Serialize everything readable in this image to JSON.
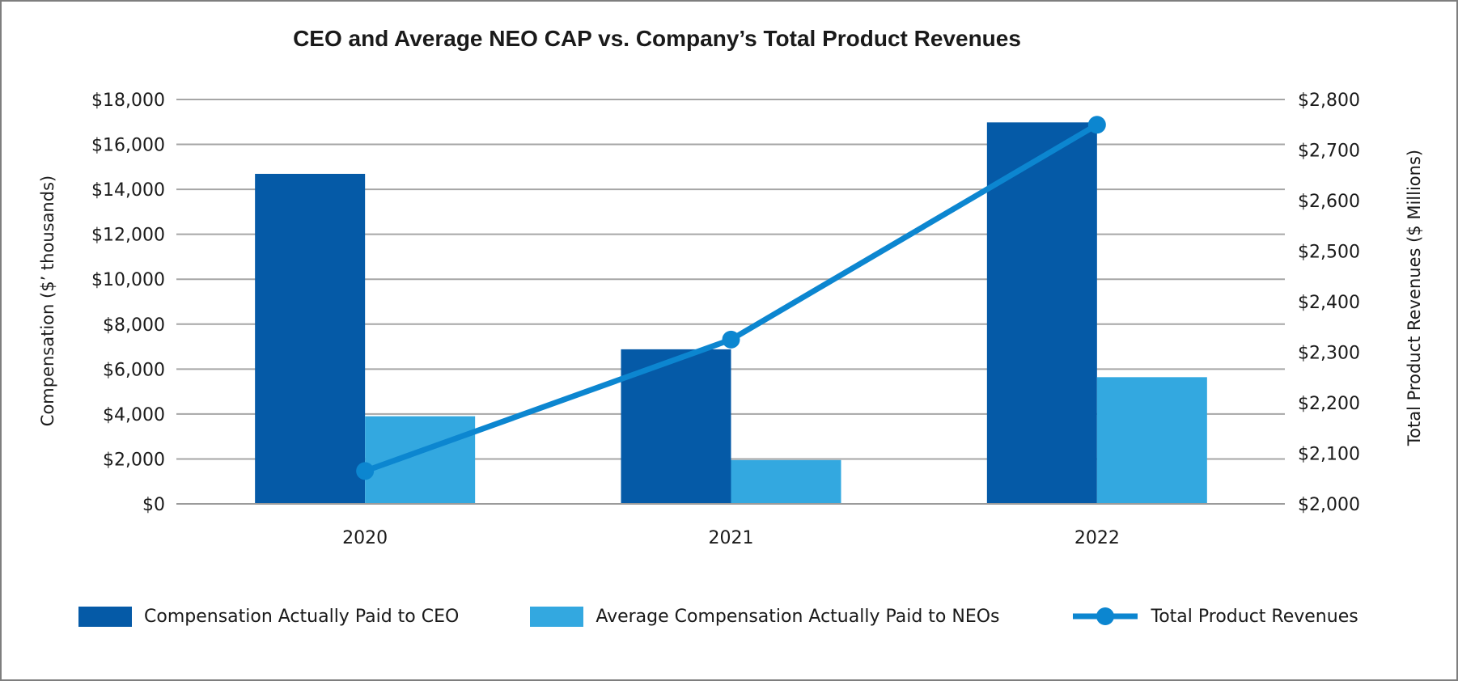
{
  "chart": {
    "title": "CEO and Average NEO CAP vs. Company’s Total Product Revenues"
  },
  "chart_data": {
    "type": "bar",
    "subtype": "bar-line-combo",
    "title": "CEO and Average NEO CAP vs. Company’s Total Product Revenues",
    "categories": [
      "2020",
      "2021",
      "2022"
    ],
    "series": [
      {
        "name": "Compensation Actually Paid to CEO",
        "type": "bar",
        "axis": "left",
        "color": "#055aa7",
        "values": [
          14690,
          6880,
          16980
        ]
      },
      {
        "name": "Average Compensation Actually Paid to NEOs",
        "type": "bar",
        "axis": "left",
        "color": "#33a8e0",
        "values": [
          3900,
          1950,
          5640
        ]
      },
      {
        "name": "Total Product Revenues",
        "type": "line",
        "axis": "right",
        "color": "#0c86d0",
        "marker": "circle",
        "values": [
          2065,
          2325,
          2750
        ]
      }
    ],
    "left_axis": {
      "label": "Compensation ($’ thousands)",
      "min": 0,
      "max": 18000,
      "step": 2000,
      "ticks": [
        "$18,000",
        "$16,000",
        "$14,000",
        "$12,000",
        "$10,000",
        "$8,000",
        "$6,000",
        "$4,000",
        "$2,000",
        "$0"
      ]
    },
    "right_axis": {
      "label": "Total Product Revenues ($ Millions)",
      "min": 2000,
      "max": 2800,
      "step": 100,
      "ticks": [
        "$2,800",
        "$2,700",
        "$2,600",
        "$2,500",
        "$2,400",
        "$2,300",
        "$2,200",
        "$2,100",
        "$2,000"
      ]
    },
    "grid": true,
    "legend_position": "bottom"
  },
  "colors": {
    "gridline": "#a6a6a6",
    "axis_line": "#9b9b9b",
    "text": "#1a1a1a",
    "border": "#7e7e7e"
  }
}
